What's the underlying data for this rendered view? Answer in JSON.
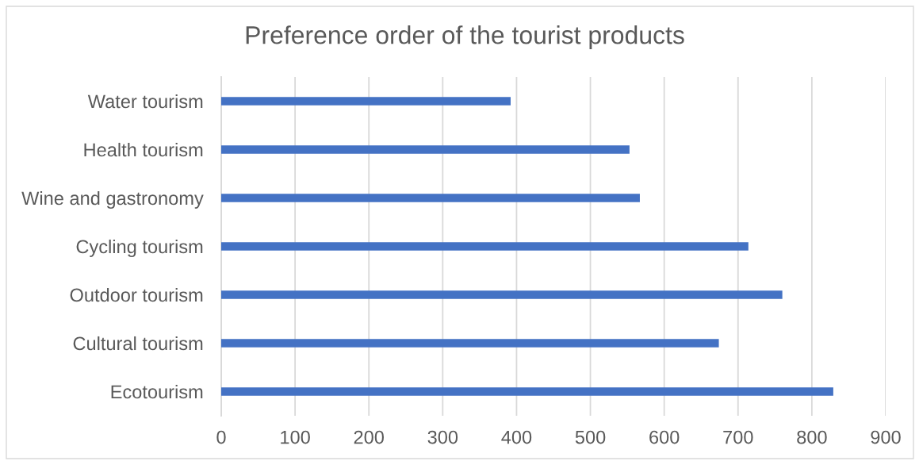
{
  "chart_data": {
    "type": "bar",
    "orientation": "horizontal",
    "title": "Preference order of the tourist products",
    "categories": [
      "Water tourism",
      "Health tourism",
      "Wine and gastronomy",
      "Cycling tourism",
      "Outdoor tourism",
      "Cultural tourism",
      "Ecotourism"
    ],
    "values": [
      392,
      553,
      567,
      714,
      760,
      674,
      829
    ],
    "color": "#4472c4",
    "xlim": [
      0,
      900
    ],
    "xticks": [
      0,
      100,
      200,
      300,
      400,
      500,
      600,
      700,
      800,
      900
    ],
    "grid": "x"
  }
}
